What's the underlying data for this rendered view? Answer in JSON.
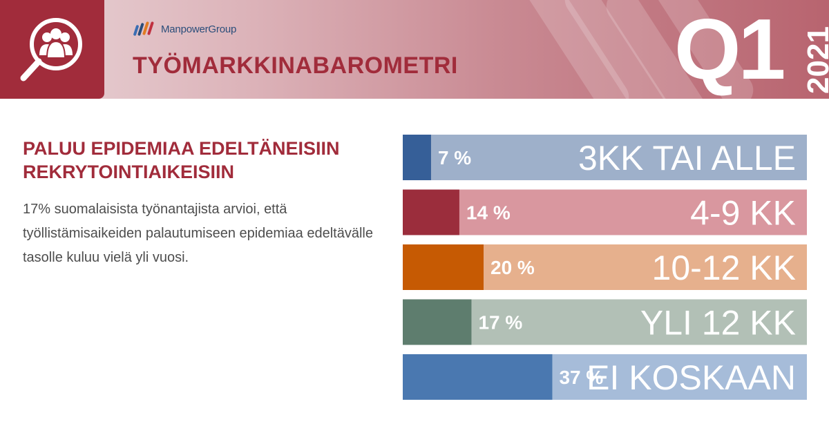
{
  "header": {
    "logo_text": "ManpowerGroup",
    "title": "TYÖMARKKINABAROMETRI",
    "quarter": "Q1",
    "year": "2021"
  },
  "main": {
    "headline_line1": "PALUU EPIDEMIAA EDELTÄNEISIIN",
    "headline_line2": "REKRYTOINTIAIKEISIIN",
    "body": "17% suomalaisista työnantajista arvioi, että työllistämisaikeiden palautumiseen epidemiaa edeltävälle tasolle kuluu vielä yli vuosi."
  },
  "chart_data": {
    "type": "bar",
    "orientation": "horizontal",
    "categories": [
      "3KK TAI ALLE",
      "4-9 KK",
      "10-12 KK",
      "YLI 12 KK",
      "EI KOSKAAN"
    ],
    "values": [
      7,
      14,
      20,
      17,
      37
    ],
    "value_labels": [
      "7 %",
      "14 %",
      "20 %",
      "17 %",
      "37 %"
    ],
    "xlim": [
      0,
      100
    ],
    "colors": [
      "#365f98",
      "#9b2d3c",
      "#c65a03",
      "#5e7d6e",
      "#4a78b0"
    ],
    "track_colors": [
      "#9eb0ca",
      "#d9979f",
      "#e6b08d",
      "#b2c0b6",
      "#a6bcd9"
    ],
    "grid": false
  }
}
